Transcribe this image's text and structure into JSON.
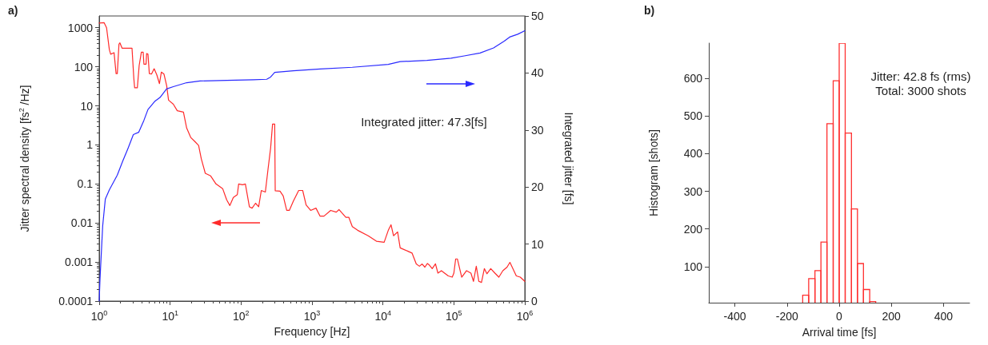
{
  "chart_data": [
    {
      "type": "line",
      "title": "a)",
      "xlabel": "Frequency [Hz]",
      "ylabel": "Jitter spectral density [fs$^{2}$ /Hz]",
      "y2label": "Integrated jitter [fs]",
      "annotations": [
        "Integrated jitter: 47.3[fs]"
      ],
      "log": "xy",
      "xlim": [
        1,
        1000000
      ],
      "xticks": [
        {
          "value": 1,
          "label": "10$^{0}$"
        },
        {
          "value": 10,
          "label": "10$^{1}$"
        },
        {
          "value": 100,
          "label": "10$^{2}$"
        },
        {
          "value": 1000,
          "label": "10$^{3}$"
        },
        {
          "value": 10000,
          "label": "10$^{4}$"
        },
        {
          "value": 100000,
          "label": "10$^{5}$"
        },
        {
          "value": 1000000,
          "label": "10$^{6}$"
        }
      ],
      "ylim": [
        0.0001,
        2000
      ],
      "yticks": [
        0.0001,
        0.001,
        0.01,
        0.1,
        1,
        10,
        100,
        1000
      ],
      "y2lim": [
        0,
        50
      ],
      "y2ticks": [
        0,
        10,
        20,
        30,
        40,
        50
      ],
      "series": [
        {
          "color": "#ff2a2a",
          "x": [
            1,
            1.17,
            1.27,
            1.39,
            1.45,
            1.62,
            1.73,
            1.8,
            1.9,
            1.96,
            2.1,
            2.9,
            3.08,
            3.16,
            3.45,
            3.66,
            3.93,
            4.17,
            4.27,
            4.58,
            4.66,
            4.87,
            5.09,
            5.46,
            5.95,
            6.49,
            7.07,
            7.52,
            8.19,
            8.93,
            9.5,
            11.1,
            12.6,
            15.4,
            17.1,
            19.5,
            22.2,
            25.2,
            27.5,
            31.3,
            37.3,
            44.3,
            55,
            62.7,
            69.5,
            77.8,
            88.5,
            92.5,
            105,
            115,
            131,
            143,
            160,
            177,
            193,
            220,
            240,
            261,
            278,
            298,
            303,
            354,
            393,
            440,
            479,
            545,
            649,
            739,
            826,
            957,
            1138,
            1296,
            1476,
            1833,
            2200,
            2400,
            3000,
            3300,
            3700,
            4400,
            6200,
            8100,
            10400,
            11900,
            13000,
            14100,
            16100,
            17500,
            19700,
            25700,
            29500,
            32700,
            35700,
            39000,
            42400,
            45500,
            49500,
            55000,
            59600,
            66700,
            83400,
            94800,
            100000,
            106000,
            112000,
            129000,
            151000,
            174000,
            189000,
            207000,
            225000,
            245000,
            269000,
            292000,
            331000,
            379000,
            431000,
            490000,
            562000,
            617000,
            759000,
            863000,
            1000000
          ],
          "values": [
            1320,
            1350,
            1000,
            275,
            210,
            230,
            67,
            67,
            380,
            410,
            300,
            300,
            49,
            29,
            29,
            108,
            235,
            235,
            117,
            117,
            218,
            210,
            67,
            65,
            89,
            62,
            37,
            73,
            65,
            33,
            14,
            11,
            7.5,
            6.9,
            2.7,
            1.55,
            1.23,
            0.97,
            0.44,
            0.187,
            0.16,
            0.1,
            0.076,
            0.039,
            0.028,
            0.045,
            0.053,
            0.1,
            0.095,
            0.1,
            0.026,
            0.024,
            0.032,
            0.026,
            0.068,
            0.062,
            0.24,
            0.83,
            3.4,
            3.4,
            0.067,
            0.065,
            0.049,
            0.021,
            0.021,
            0.036,
            0.068,
            0.068,
            0.029,
            0.021,
            0.024,
            0.015,
            0.015,
            0.021,
            0.019,
            0.022,
            0.014,
            0.014,
            0.0081,
            0.0065,
            0.0047,
            0.0034,
            0.0032,
            0.0065,
            0.009,
            0.0047,
            0.0059,
            0.0023,
            0.0021,
            0.0017,
            0.00089,
            0.00078,
            0.00089,
            0.00074,
            0.00092,
            0.00082,
            0.00068,
            0.0009,
            0.00052,
            0.0006,
            0.00044,
            0.00041,
            0.00052,
            0.0012,
            0.0012,
            0.00041,
            0.0006,
            0.00052,
            0.00032,
            0.00078,
            0.00032,
            0.0003,
            0.00068,
            0.0005,
            0.00068,
            0.00052,
            0.00041,
            0.0006,
            0.00074,
            0.00098,
            0.00044,
            0.00041,
            0.00032
          ]
        },
        {
          "color": "#2a2aff",
          "axis": "y2",
          "x": [
            1,
            1.026,
            1.12,
            1.22,
            1.39,
            1.8,
            2.14,
            2.55,
            3.03,
            3.6,
            4.27,
            4.87,
            6.05,
            7.2,
            8.9,
            11.1,
            17.1,
            26.4,
            62.7,
            149,
            230,
            261,
            298,
            545,
            1309,
            3700,
            11900,
            17500,
            41700,
            91200,
            140000,
            234000,
            363000,
            513000,
            611000,
            794000,
            1000000
          ],
          "values": [
            0,
            3.8,
            13.2,
            17.9,
            19.5,
            22.1,
            24.5,
            26.8,
            29.2,
            29.6,
            31.7,
            33.6,
            35.0,
            35.7,
            37.2,
            37.6,
            38.3,
            38.6,
            38.7,
            38.8,
            38.9,
            39.3,
            40.1,
            40.4,
            40.7,
            41.0,
            41.5,
            42.0,
            42.2,
            42.6,
            43.0,
            43.5,
            44.4,
            45.6,
            46.3,
            46.8,
            47.4
          ]
        }
      ]
    },
    {
      "type": "histogram",
      "title": "b)",
      "xlabel": "Arrival time [fs]",
      "ylabel": "Histogram [shots]",
      "annotations": [
        "Jitter: 42.8 fs (rms)",
        "Total: 3000 shots"
      ],
      "color": "#ff3030",
      "bins": [
        -140,
        -117,
        -93,
        -70,
        -47,
        -23,
        0,
        23,
        47,
        70,
        93,
        117,
        140
      ],
      "values": [
        24,
        68,
        89,
        165,
        480,
        594,
        694,
        455,
        253,
        108,
        39,
        7
      ],
      "xlim": [
        -500,
        500
      ],
      "xticks": [
        -400,
        -200,
        0,
        200,
        400
      ],
      "ylim": [
        4,
        694
      ],
      "yticks": [
        100,
        200,
        300,
        400,
        500,
        600
      ]
    }
  ]
}
